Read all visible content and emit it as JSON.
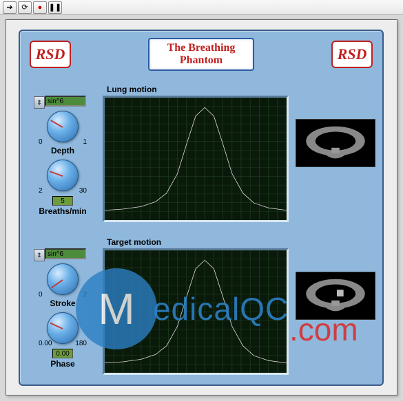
{
  "title_line1": "The Breathing",
  "title_line2": "Phantom",
  "logo_text": "RSD",
  "toolbar": {
    "run": "➔",
    "loop": "⟳",
    "record": "●",
    "pause": "❚❚"
  },
  "sections": {
    "lung": {
      "label": "Lung motion",
      "waveform": "sin^6",
      "knob1": {
        "label": "Depth",
        "min": "0",
        "max": "1",
        "angle_deg": 210
      },
      "knob2": {
        "label": "Breaths/min",
        "min": "2",
        "max": "30",
        "angle_deg": 200,
        "display": "5"
      }
    },
    "target": {
      "label": "Target motion",
      "waveform": "sin^6",
      "knob1": {
        "label": "Stroke",
        "min": "0",
        "max": "2",
        "angle_deg": 145
      },
      "knob2": {
        "label": "Phase",
        "min": "0.00",
        "max": "180",
        "angle_deg": 205,
        "display": "0.00"
      }
    }
  },
  "chart_style": {
    "background_color": "#0a1a0a",
    "grid_color": "#1c3c1c",
    "major_grid_color": "#0f2a0f",
    "trace_color": "#dcdcdc",
    "type": "line",
    "xlim": [
      0,
      100
    ],
    "ylim": [
      0,
      100
    ],
    "grid_divisions_x": 20,
    "grid_divisions_y": 14
  },
  "lung_curve": [
    [
      0,
      92
    ],
    [
      10,
      91
    ],
    [
      20,
      89
    ],
    [
      28,
      85
    ],
    [
      34,
      78
    ],
    [
      40,
      62
    ],
    [
      45,
      38
    ],
    [
      50,
      15
    ],
    [
      55,
      8
    ],
    [
      60,
      15
    ],
    [
      65,
      38
    ],
    [
      70,
      62
    ],
    [
      76,
      78
    ],
    [
      82,
      86
    ],
    [
      90,
      90
    ],
    [
      100,
      92
    ]
  ],
  "target_curve": [
    [
      0,
      92
    ],
    [
      10,
      91
    ],
    [
      20,
      89
    ],
    [
      28,
      85
    ],
    [
      34,
      78
    ],
    [
      40,
      62
    ],
    [
      45,
      38
    ],
    [
      50,
      15
    ],
    [
      55,
      8
    ],
    [
      60,
      15
    ],
    [
      65,
      38
    ],
    [
      70,
      62
    ],
    [
      76,
      78
    ],
    [
      82,
      86
    ],
    [
      90,
      90
    ],
    [
      100,
      92
    ]
  ],
  "preview_colors": {
    "background": "#000000",
    "body_fill": "#888888",
    "target_fill": "#bbbbbb"
  },
  "logo_colors": {
    "border": "#c02020",
    "text": "#c02020",
    "background": "#ffffff"
  },
  "title_colors": {
    "text": "#c02020",
    "border": "#2c5aa0",
    "background": "#ffffff"
  },
  "panel_colors": {
    "background": "#8fb8dc",
    "border": "#3a5a8a"
  },
  "knob_colors": {
    "gradient_light": "#d8ecff",
    "gradient_mid": "#6bb0e8",
    "gradient_dark": "#2a6cb0",
    "pointer": "#c04040"
  },
  "watermark": {
    "circle_letter": "M",
    "text1": "edicalQC",
    "text2": ".com",
    "color1": "#2b7fc4",
    "color2": "#d93030"
  }
}
